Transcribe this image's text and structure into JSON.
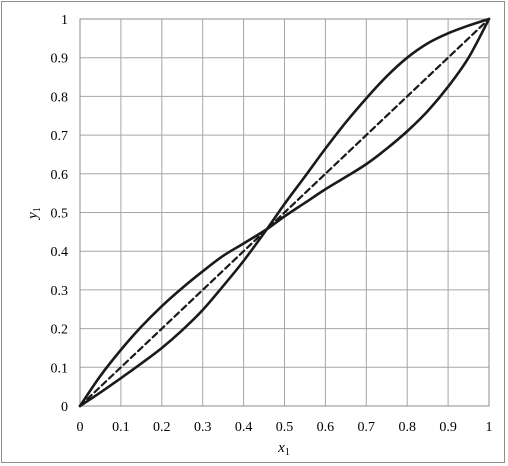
{
  "chart_data": {
    "type": "line",
    "xlabel": "x",
    "xlabel_sub": "1",
    "ylabel": "y",
    "ylabel_sub": "1",
    "xlim": [
      0,
      1
    ],
    "ylim": [
      0,
      1
    ],
    "grid": true,
    "x_ticks": [
      "0",
      "0.1",
      "0.2",
      "0.3",
      "0.4",
      "0.5",
      "0.6",
      "0.7",
      "0.8",
      "0.9",
      "1"
    ],
    "y_ticks": [
      "0",
      "0.1",
      "0.2",
      "0.3",
      "0.4",
      "0.5",
      "0.6",
      "0.7",
      "0.8",
      "0.9",
      "1"
    ],
    "series": [
      {
        "style": "solid",
        "color": "#1a1a1a",
        "x": [
          0,
          0.05,
          0.1,
          0.15,
          0.2,
          0.25,
          0.3,
          0.35,
          0.4,
          0.457,
          0.5,
          0.55,
          0.6,
          0.65,
          0.7,
          0.75,
          0.8,
          0.85,
          0.9,
          0.95,
          1
        ],
        "y": [
          0,
          0.078,
          0.145,
          0.205,
          0.258,
          0.305,
          0.348,
          0.388,
          0.42,
          0.457,
          0.49,
          0.525,
          0.56,
          0.592,
          0.625,
          0.665,
          0.71,
          0.762,
          0.825,
          0.9,
          1
        ]
      },
      {
        "style": "solid",
        "color": "#1a1a1a",
        "x": [
          0,
          0.05,
          0.1,
          0.15,
          0.2,
          0.25,
          0.3,
          0.35,
          0.4,
          0.457,
          0.5,
          0.55,
          0.6,
          0.65,
          0.7,
          0.75,
          0.8,
          0.85,
          0.9,
          0.95,
          1
        ],
        "y": [
          0,
          0.035,
          0.072,
          0.11,
          0.15,
          0.196,
          0.248,
          0.31,
          0.375,
          0.457,
          0.522,
          0.593,
          0.665,
          0.733,
          0.795,
          0.852,
          0.9,
          0.937,
          0.963,
          0.983,
          1
        ]
      },
      {
        "style": "dashed",
        "color": "#1a1a1a",
        "x": [
          0,
          1
        ],
        "y": [
          0,
          1
        ]
      }
    ]
  }
}
